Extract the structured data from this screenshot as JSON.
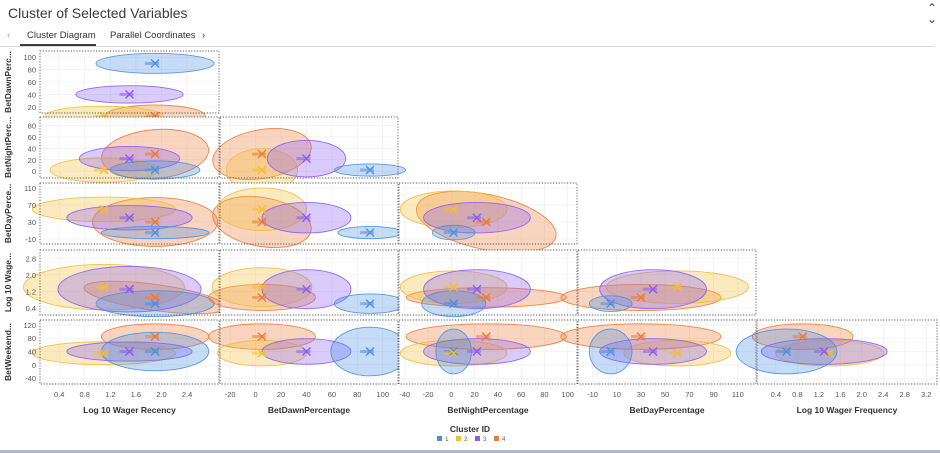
{
  "header": {
    "title": "Cluster of Selected Variables",
    "expand_icon": "expand-icon"
  },
  "tabs": {
    "prev_icon": "‹",
    "next_icon": "›",
    "items": [
      {
        "label": "Cluster Diagram",
        "active": true
      },
      {
        "label": "Parallel Coordinates",
        "active": false
      }
    ]
  },
  "chart_data": {
    "type": "scatter-matrix",
    "title": "Cluster of Selected Variables",
    "variables": [
      "Log 10 Wager Recency",
      "BetDawnPercentage",
      "BetNightPercentage",
      "BetDayPercentage",
      "Log 10 Wager Frequency",
      "BetWeekendPercentage"
    ],
    "row_labels": [
      "BetDawnPerc...",
      "BetNightPerc...",
      "BetDayPerce...",
      "Log 10 Wage...",
      "BetWeekend..."
    ],
    "column_labels": [
      "Log 10 Wager Recency",
      "BetDawnPercentage",
      "BetNightPercentage",
      "BetDayPercentage",
      "Log 10 Wager Frequency"
    ],
    "legend": {
      "title": "Cluster ID",
      "items": [
        "1",
        "2",
        "3",
        "4"
      ],
      "colors": [
        "#4a90e2",
        "#f2bd37",
        "#8a5cf6",
        "#ec7b37"
      ]
    },
    "axes": {
      "x": [
        {
          "ticks": [
            "0.4",
            "0.8",
            "1.2",
            "1.6",
            "2.0",
            "2.4"
          ],
          "tick_values": [
            0.4,
            0.8,
            1.2,
            1.6,
            2.0,
            2.4
          ],
          "range": [
            0.1,
            2.9
          ]
        },
        {
          "ticks": [
            "-20",
            "0",
            "20",
            "40",
            "60",
            "80",
            "100"
          ],
          "tick_values": [
            -20,
            0,
            20,
            40,
            60,
            80,
            100
          ],
          "range": [
            -28,
            112
          ]
        },
        {
          "ticks": [
            "-40",
            "-20",
            "0",
            "20",
            "40",
            "60",
            "80",
            "100"
          ],
          "tick_values": [
            -40,
            -20,
            0,
            20,
            40,
            60,
            80,
            100
          ],
          "range": [
            -45,
            108
          ]
        },
        {
          "ticks": [
            "-10",
            "10",
            "30",
            "50",
            "70",
            "90",
            "110"
          ],
          "tick_values": [
            -10,
            10,
            30,
            50,
            70,
            90,
            110
          ],
          "range": [
            -22,
            125
          ]
        },
        {
          "ticks": [
            "0.4",
            "0.8",
            "1.2",
            "1.6",
            "2.0",
            "2.4",
            "2.8",
            "3.2"
          ],
          "tick_values": [
            0.4,
            0.8,
            1.2,
            1.6,
            2.0,
            2.4,
            2.8,
            3.2
          ],
          "range": [
            0.05,
            3.4
          ]
        }
      ],
      "y": [
        {
          "ticks": [
            "100",
            "80",
            "60",
            "40",
            "20"
          ],
          "tick_values": [
            100,
            80,
            60,
            40,
            20
          ],
          "range": [
            10,
            110
          ]
        },
        {
          "ticks": [
            "80",
            "60",
            "40",
            "20",
            "0"
          ],
          "tick_values": [
            80,
            60,
            40,
            20,
            0
          ],
          "range": [
            -12,
            95
          ]
        },
        {
          "ticks": [
            "110",
            "70",
            "30",
            "-10"
          ],
          "tick_values": [
            110,
            70,
            30,
            -10
          ],
          "range": [
            -22,
            122
          ]
        },
        {
          "ticks": [
            "2.8",
            "2.0",
            "1.2",
            "0.4"
          ],
          "tick_values": [
            2.8,
            2.0,
            1.2,
            0.4
          ],
          "range": [
            0.05,
            3.2
          ]
        },
        {
          "ticks": [
            "120",
            "80",
            "40",
            "0",
            "-40"
          ],
          "tick_values": [
            120,
            80,
            40,
            0,
            -40
          ],
          "range": [
            -58,
            135
          ]
        }
      ]
    },
    "cluster_centroids": {
      "Log 10 Wager Recency": [
        1.9,
        1.1,
        1.5,
        1.9
      ],
      "BetDawnPercentage": [
        90,
        5,
        40,
        5
      ],
      "BetNightPercentage": [
        2,
        2,
        22,
        30
      ],
      "BetDayPercentage": [
        5,
        60,
        40,
        30
      ],
      "Log 10 Wager Frequency": [
        0.6,
        1.4,
        1.3,
        0.9
      ],
      "BetWeekendPercentage": [
        40,
        35,
        40,
        85
      ]
    }
  }
}
